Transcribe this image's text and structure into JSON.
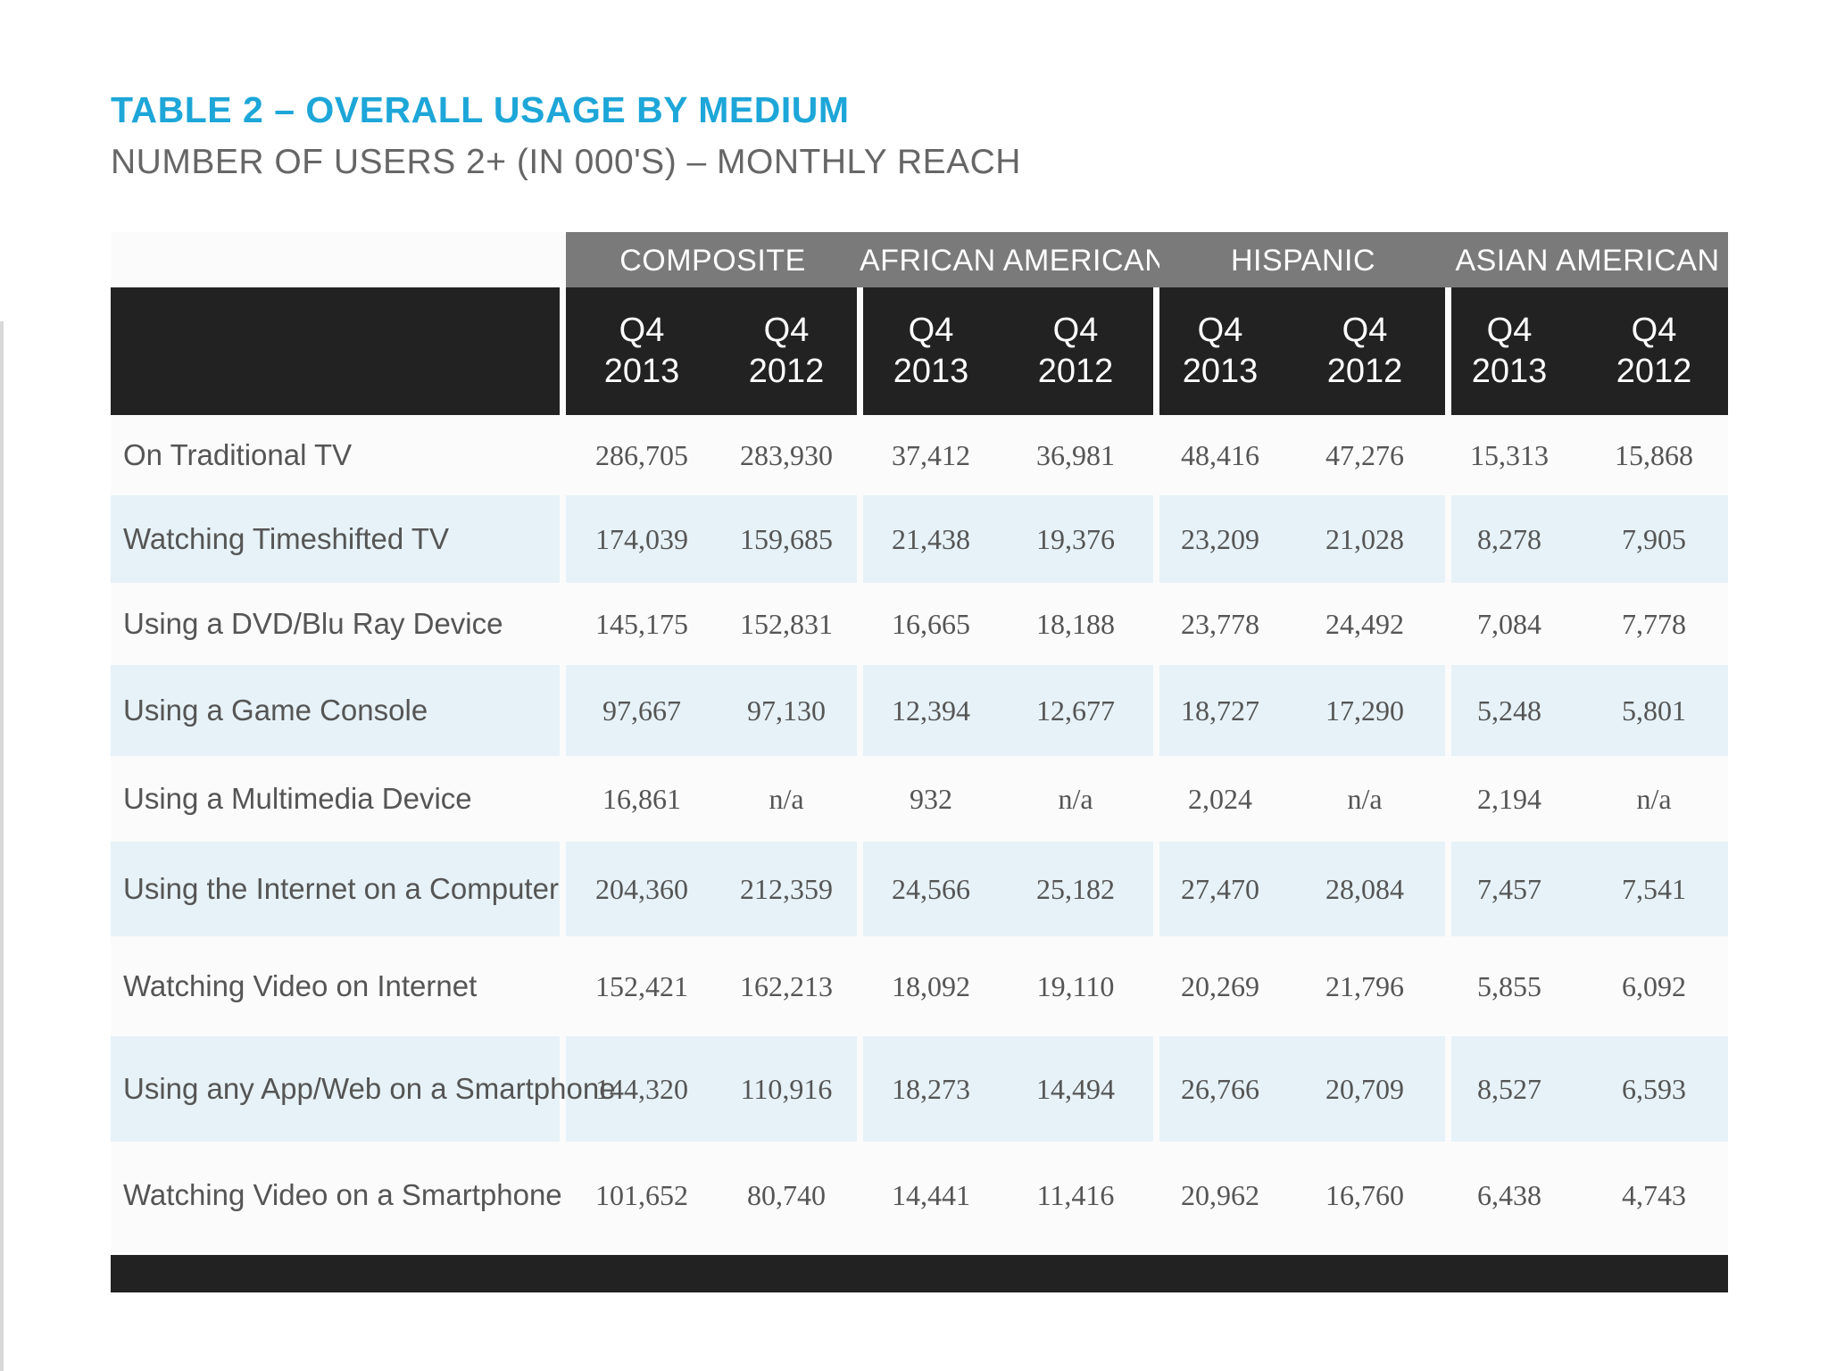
{
  "title": "TABLE 2 – OVERALL USAGE BY MEDIUM",
  "subtitle": "NUMBER OF USERS 2+ (IN 000'S) – MONTHLY REACH",
  "groups": [
    "COMPOSITE",
    "AFRICAN AMERICAN",
    "HISPANIC",
    "ASIAN AMERICAN"
  ],
  "periods": [
    "Q4\n2013",
    "Q4\n2012",
    "Q4\n2013",
    "Q4\n2012",
    "Q4\n2013",
    "Q4\n2012",
    "Q4\n2013",
    "Q4\n2012"
  ],
  "rows": [
    {
      "label": "On Traditional TV",
      "values": [
        "286,705",
        "283,930",
        "37,412",
        "36,981",
        "48,416",
        "47,276",
        "15,313",
        "15,868"
      ]
    },
    {
      "label": "Watching Timeshifted TV",
      "values": [
        "174,039",
        "159,685",
        "21,438",
        "19,376",
        "23,209",
        "21,028",
        "8,278",
        "7,905"
      ]
    },
    {
      "label": "Using a DVD/Blu Ray Device",
      "values": [
        "145,175",
        "152,831",
        "16,665",
        "18,188",
        "23,778",
        "24,492",
        "7,084",
        "7,778"
      ]
    },
    {
      "label": "Using a Game Console",
      "values": [
        "97,667",
        "97,130",
        "12,394",
        "12,677",
        "18,727",
        "17,290",
        "5,248",
        "5,801"
      ]
    },
    {
      "label": "Using a Multimedia Device",
      "values": [
        "16,861",
        "n/a",
        "932",
        "n/a",
        "2,024",
        "n/a",
        "2,194",
        "n/a"
      ]
    },
    {
      "label": "Using the Internet on a Computer",
      "values": [
        "204,360",
        "212,359",
        "24,566",
        "25,182",
        "27,470",
        "28,084",
        "7,457",
        "7,541"
      ]
    },
    {
      "label": "Watching Video on Internet",
      "values": [
        "152,421",
        "162,213",
        "18,092",
        "19,110",
        "20,269",
        "21,796",
        "5,855",
        "6,092"
      ]
    },
    {
      "label": "Using any App/Web on a Smartphone",
      "values": [
        "144,320",
        "110,916",
        "18,273",
        "14,494",
        "26,766",
        "20,709",
        "8,527",
        "6,593"
      ]
    },
    {
      "label": "Watching Video on a Smartphone",
      "values": [
        "101,652",
        "80,740",
        "14,441",
        "11,416",
        "20,962",
        "16,760",
        "6,438",
        "4,743"
      ]
    }
  ],
  "colors": {
    "title": "#1da6d8",
    "group_header": "#7a7a7a",
    "sub_header": "#222222",
    "row_shade": "#e6f2f8"
  }
}
